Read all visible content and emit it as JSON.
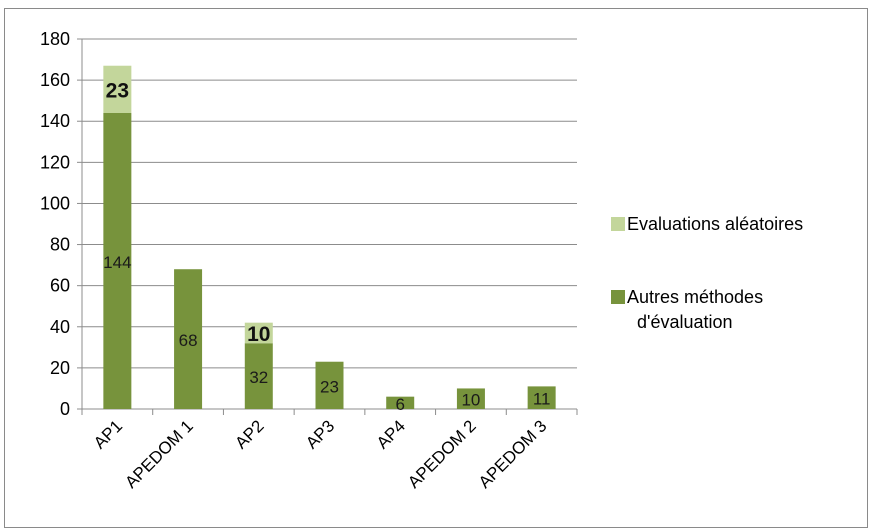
{
  "chart_data": {
    "type": "bar",
    "stacked": true,
    "categories": [
      "AP1",
      "APEDOM 1",
      "AP2",
      "AP3",
      "AP4",
      "APEDOM 2",
      "APEDOM 3"
    ],
    "series": [
      {
        "name": "Autres méthodes d'évaluation",
        "values": [
          144,
          68,
          32,
          23,
          6,
          10,
          11
        ],
        "color": "#77933c"
      },
      {
        "name": "Evaluations aléatoires",
        "values": [
          23,
          0,
          10,
          0,
          0,
          0,
          0
        ],
        "color": "#c3d69b"
      }
    ],
    "data_labels": {
      "Autres méthodes d'évaluation": [
        "144",
        "68",
        "32",
        "23",
        "6",
        "10",
        "11"
      ],
      "Evaluations aléatoires": [
        "23",
        "",
        "10",
        "",
        "",
        "",
        ""
      ]
    },
    "yticks": [
      "0",
      "20",
      "40",
      "60",
      "80",
      "100",
      "120",
      "140",
      "160",
      "180"
    ],
    "ylim": [
      0,
      180
    ],
    "grid": true,
    "legend": {
      "position": "right",
      "entries": [
        "Evaluations aléatoires",
        "Autres méthodes d'évaluation"
      ]
    },
    "title": "",
    "xlabel": "",
    "ylabel": ""
  }
}
